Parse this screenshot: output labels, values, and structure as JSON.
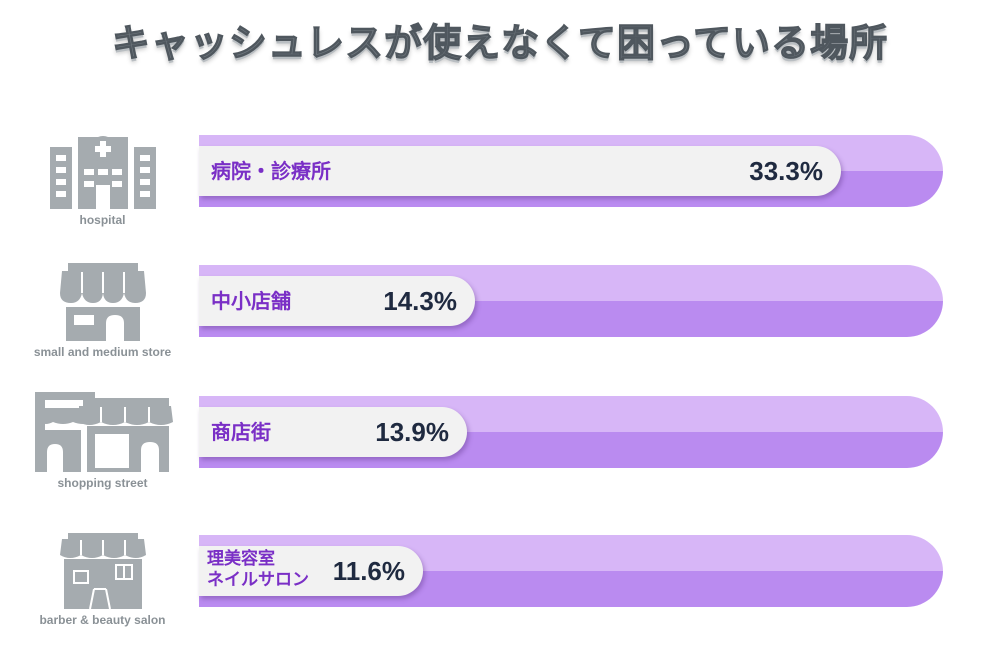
{
  "title": "キャッシュレスが使えなくて困っている場所",
  "colors": {
    "bar_top": "#d7b6f7",
    "bar_bottom": "#ba8bf0",
    "pill": "#f2f2f2",
    "label": "#7a2fc6",
    "value": "#1f2a40",
    "icon": "#a5abaf"
  },
  "chart_data": {
    "type": "bar",
    "orientation": "horizontal",
    "title": "キャッシュレスが使えなくて困っている場所",
    "categories": [
      "病院・診療所",
      "中小店舗",
      "商店街",
      "理美容室ネイルサロン"
    ],
    "values": [
      33.3,
      14.3,
      13.9,
      11.6
    ],
    "value_labels": [
      "33.3%",
      "14.3%",
      "13.9%",
      "11.6%"
    ],
    "unit": "%",
    "xlim": [
      0,
      40
    ],
    "grid": false,
    "legend": "none"
  },
  "rows": [
    {
      "label_lines": [
        "病院・診療所"
      ],
      "value": 33.3,
      "value_text": "33.3%",
      "icon": "hospital-icon",
      "icon_caption": "hospital"
    },
    {
      "label_lines": [
        "中小店舗"
      ],
      "value": 14.3,
      "value_text": "14.3%",
      "icon": "store-icon",
      "icon_caption": "small and medium store"
    },
    {
      "label_lines": [
        "商店街"
      ],
      "value": 13.9,
      "value_text": "13.9%",
      "icon": "shopping-street-icon",
      "icon_caption": "shopping street"
    },
    {
      "label_lines": [
        "理美容室",
        "ネイルサロン"
      ],
      "value": 11.6,
      "value_text": "11.6%",
      "icon": "salon-icon",
      "icon_caption": "barber & beauty salon"
    }
  ]
}
